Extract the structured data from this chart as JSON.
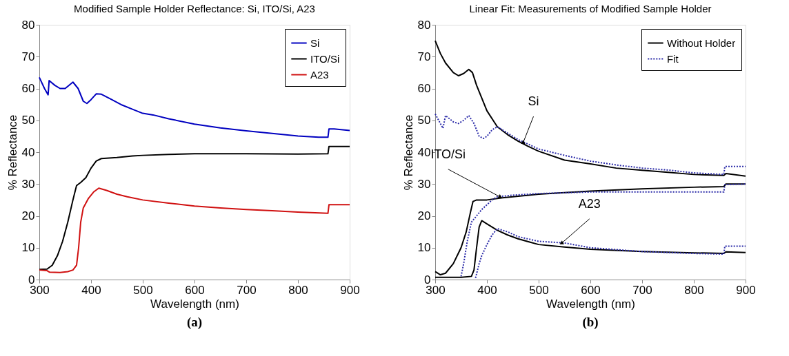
{
  "chart_data": [
    {
      "type": "line",
      "title": "Modified Sample Holder Reflectance: Si, ITO/Si, A23",
      "xlabel": "Wavelength (nm)",
      "ylabel": "% Reflectance",
      "xlim": [
        300,
        900
      ],
      "ylim": [
        0,
        80
      ],
      "xticks": [
        300,
        400,
        500,
        600,
        700,
        800,
        900
      ],
      "yticks": [
        0,
        10,
        20,
        30,
        40,
        50,
        60,
        70,
        80
      ],
      "grid": false,
      "legend": "top right",
      "marker": "none",
      "annotations": [
        "(a)"
      ],
      "series": [
        {
          "name": "Si",
          "color": "#0000c0",
          "line_style": "solid",
          "x": [
            300,
            310,
            317,
            319,
            330,
            340,
            350,
            365,
            375,
            385,
            392,
            400,
            410,
            420,
            440,
            460,
            480,
            500,
            520,
            550,
            600,
            650,
            700,
            750,
            800,
            840,
            858,
            860,
            870,
            900
          ],
          "values": [
            63.5,
            60,
            58,
            62.5,
            61,
            60,
            60,
            62,
            60,
            56,
            55.3,
            56.5,
            58.3,
            58.2,
            56.5,
            54.8,
            53.5,
            52.2,
            51.7,
            50.5,
            48.8,
            47.6,
            46.7,
            45.9,
            45.1,
            44.7,
            44.7,
            47.3,
            47.3,
            46.8
          ]
        },
        {
          "name": "ITO/Si",
          "color": "#000000",
          "line_style": "solid",
          "x": [
            300,
            315,
            325,
            335,
            345,
            355,
            365,
            372,
            380,
            390,
            400,
            410,
            420,
            450,
            480,
            500,
            550,
            600,
            700,
            800,
            858,
            860,
            900
          ],
          "values": [
            3.2,
            3.3,
            4.5,
            7.5,
            12,
            18,
            25,
            29.5,
            30.5,
            32,
            35,
            37.2,
            38,
            38.3,
            38.8,
            39,
            39.3,
            39.5,
            39.5,
            39.4,
            39.5,
            41.8,
            41.8
          ]
        },
        {
          "name": "A23",
          "color": "#d01010",
          "line_style": "solid",
          "x": [
            300,
            315,
            320,
            340,
            355,
            365,
            372,
            376,
            380,
            385,
            395,
            405,
            415,
            430,
            450,
            470,
            500,
            550,
            600,
            650,
            700,
            750,
            800,
            858,
            860,
            900
          ],
          "values": [
            3,
            2.8,
            2.3,
            2.2,
            2.5,
            3,
            4.5,
            10,
            18,
            22.5,
            25.5,
            27.5,
            28.7,
            28,
            26.8,
            26,
            25,
            24,
            23.1,
            22.5,
            22,
            21.6,
            21.2,
            20.8,
            23.5,
            23.5
          ]
        }
      ]
    },
    {
      "type": "line",
      "title": "Linear Fit: Measurements of Modified Sample Holder",
      "xlabel": "Wavelength (nm)",
      "ylabel": "% Reflectance",
      "xlim": [
        300,
        900
      ],
      "ylim": [
        0,
        80
      ],
      "xticks": [
        300,
        400,
        500,
        600,
        700,
        800,
        900
      ],
      "yticks": [
        0,
        10,
        20,
        30,
        40,
        50,
        60,
        70,
        80
      ],
      "grid": false,
      "legend": "top right",
      "marker": "none",
      "annotations": [
        {
          "text": "Si",
          "x": 470,
          "y": 43
        },
        {
          "text": "ITO/Si",
          "x": 425,
          "y": 26
        },
        {
          "text": "A23",
          "x": 545,
          "y": 11.5
        },
        "(b)"
      ],
      "series": [
        {
          "name": "Without Holder",
          "color": "#000000",
          "line_style": "solid",
          "x": [
            300,
            310,
            320,
            335,
            345,
            355,
            365,
            372,
            380,
            390,
            400,
            420,
            440,
            460,
            480,
            500,
            550,
            600,
            650,
            700,
            750,
            800,
            858,
            862,
            900
          ],
          "values": [
            75,
            71,
            68,
            65,
            64,
            64.7,
            66,
            65,
            61,
            57,
            53,
            48,
            45.5,
            43.5,
            41.8,
            40.3,
            37.5,
            36.3,
            35,
            34.3,
            33.7,
            33,
            32.7,
            33.3,
            32.5
          ]
        },
        {
          "name": "Fit",
          "color": "#2a2aa8",
          "line_style": "dotted",
          "x": [
            300,
            310,
            315,
            320,
            335,
            345,
            355,
            365,
            375,
            385,
            393,
            400,
            410,
            420,
            440,
            460,
            480,
            500,
            550,
            600,
            650,
            700,
            750,
            800,
            858,
            860,
            900
          ],
          "values": [
            52,
            49,
            47.5,
            51.5,
            49.5,
            49,
            50,
            51.5,
            49,
            45,
            44.3,
            45,
            47,
            48,
            46,
            44,
            42.5,
            41,
            39,
            37.2,
            36,
            35,
            34.4,
            33.5,
            33,
            35.5,
            35.5
          ]
        },
        {
          "color": "#000000",
          "line_style": "solid",
          "x": [
            300,
            310,
            320,
            335,
            350,
            360,
            368,
            373,
            380,
            400,
            430,
            500,
            600,
            700,
            800,
            858,
            862,
            900
          ],
          "values": [
            2.5,
            1.5,
            2,
            5,
            10,
            15,
            21,
            24.5,
            25,
            25,
            25.7,
            26.8,
            27.8,
            28.5,
            29,
            29.2,
            30,
            30
          ]
        },
        {
          "color": "#2a2aa8",
          "line_style": "dotted",
          "x": [
            350,
            355,
            362,
            370,
            380,
            390,
            400,
            410,
            420,
            450,
            500,
            600,
            700,
            800,
            858,
            860,
            900
          ],
          "values": [
            1,
            5,
            12,
            18,
            20,
            22,
            23.5,
            25,
            26,
            26.5,
            27,
            27.5,
            27.5,
            27.5,
            27.5,
            29.8,
            30
          ]
        },
        {
          "color": "#000000",
          "line_style": "solid",
          "x": [
            300,
            350,
            370,
            375,
            380,
            385,
            390,
            400,
            420,
            440,
            460,
            500,
            550,
            600,
            700,
            800,
            858,
            862,
            900
          ],
          "values": [
            0.7,
            0.7,
            1,
            3,
            10,
            16.5,
            18.5,
            17.5,
            15.5,
            14,
            12.8,
            11,
            10.2,
            9.5,
            8.8,
            8.4,
            8.2,
            8.7,
            8.5
          ]
        },
        {
          "color": "#2a2aa8",
          "line_style": "dotted",
          "x": [
            378,
            385,
            390,
            400,
            410,
            420,
            440,
            460,
            500,
            550,
            600,
            700,
            800,
            858,
            860,
            900
          ],
          "values": [
            0.5,
            5,
            7.5,
            11,
            14,
            16,
            15,
            13.5,
            12,
            11.5,
            10,
            8.8,
            8.2,
            8,
            10.5,
            10.5
          ]
        }
      ]
    }
  ]
}
